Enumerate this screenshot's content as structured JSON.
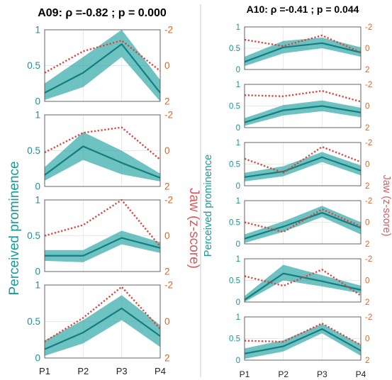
{
  "chart_data": [
    {
      "type": "line",
      "title": "A09: ρ =-0.82 ; p = 0.000",
      "ylabel_left": "Perceived prominence",
      "ylabel_right": "Jaw (z-score)",
      "x_ticks": [
        "P1",
        "P2",
        "P3",
        "P4"
      ],
      "left_ticks": [
        "0",
        "0.5",
        "1"
      ],
      "right_ticks": [
        "-2",
        "0",
        "2"
      ],
      "ylim_left": [
        0,
        1
      ],
      "ylim_right": [
        2,
        -2
      ],
      "colors": {
        "band": "#2aa5a3",
        "line": "#137e7f",
        "jaw": "#d9453f"
      },
      "panels": [
        {
          "mean": [
            0.12,
            0.4,
            0.8,
            0.12
          ],
          "lower": [
            0.02,
            0.2,
            0.62,
            0.0
          ],
          "upper": [
            0.25,
            0.62,
            1.0,
            0.3
          ],
          "jaw": [
            0.4,
            -0.8,
            -1.4,
            0.3
          ]
        },
        {
          "mean": [
            0.16,
            0.56,
            0.33,
            0.12
          ],
          "lower": [
            0.08,
            0.37,
            0.17,
            0.07
          ],
          "upper": [
            0.27,
            0.76,
            0.5,
            0.18
          ],
          "jaw": [
            0.1,
            -1.0,
            -1.3,
            0.5
          ]
        },
        {
          "mean": [
            0.22,
            0.22,
            0.47,
            0.33
          ],
          "lower": [
            0.15,
            0.13,
            0.38,
            0.26
          ],
          "upper": [
            0.3,
            0.3,
            0.57,
            0.41
          ],
          "jaw": [
            0.0,
            -0.6,
            -2.0,
            0.6
          ]
        },
        {
          "mean": [
            0.12,
            0.35,
            0.68,
            0.3
          ],
          "lower": [
            0.03,
            0.2,
            0.52,
            0.15
          ],
          "upper": [
            0.24,
            0.52,
            0.86,
            0.45
          ],
          "jaw": [
            1.1,
            -0.2,
            -1.9,
            0.4
          ]
        }
      ]
    },
    {
      "type": "line",
      "title": "A10: ρ =-0.41 ; p = 0.044",
      "ylabel_left": "Perceived prominence",
      "ylabel_right": "Jaw (z-score)",
      "x_ticks": [
        "P1",
        "P2",
        "P3",
        "P4"
      ],
      "left_ticks": [
        "0",
        "0.5",
        "1"
      ],
      "right_ticks": [
        "-2",
        "0",
        "2"
      ],
      "ylim_left": [
        0,
        1
      ],
      "ylim_right": [
        2,
        -2
      ],
      "colors": {
        "band": "#2aa5a3",
        "line": "#137e7f",
        "jaw": "#d9453f"
      },
      "panels": [
        {
          "mean": [
            0.18,
            0.52,
            0.62,
            0.4
          ],
          "lower": [
            0.08,
            0.38,
            0.5,
            0.3
          ],
          "upper": [
            0.3,
            0.67,
            0.75,
            0.52
          ],
          "jaw": [
            -0.8,
            -0.2,
            -1.2,
            0.4
          ]
        },
        {
          "mean": [
            0.12,
            0.4,
            0.5,
            0.35
          ],
          "lower": [
            0.04,
            0.28,
            0.38,
            0.24
          ],
          "upper": [
            0.22,
            0.52,
            0.63,
            0.46
          ],
          "jaw": [
            -1.0,
            -0.9,
            -1.4,
            -0.4
          ]
        },
        {
          "mean": [
            0.2,
            0.33,
            0.66,
            0.35
          ],
          "lower": [
            0.1,
            0.22,
            0.55,
            0.24
          ],
          "upper": [
            0.3,
            0.45,
            0.78,
            0.47
          ],
          "jaw": [
            -0.5,
            0.8,
            -1.6,
            -0.2
          ]
        },
        {
          "mean": [
            0.12,
            0.4,
            0.72,
            0.37
          ],
          "lower": [
            0.02,
            0.28,
            0.62,
            0.22
          ],
          "upper": [
            0.22,
            0.52,
            0.88,
            0.5
          ],
          "jaw": [
            0.0,
            0.9,
            -1.2,
            0.4
          ]
        },
        {
          "mean": [
            0.05,
            0.66,
            0.48,
            0.28
          ],
          "lower": [
            0.0,
            0.5,
            0.36,
            0.2
          ],
          "upper": [
            0.14,
            0.86,
            0.62,
            0.38
          ],
          "jaw": [
            -0.4,
            0.5,
            -1.0,
            1.4
          ]
        },
        {
          "mean": [
            0.15,
            0.32,
            0.72,
            0.22
          ],
          "lower": [
            0.03,
            0.2,
            0.62,
            0.1
          ],
          "upper": [
            0.27,
            0.46,
            0.84,
            0.36
          ],
          "jaw": [
            0.2,
            0.3,
            -1.4,
            0.6
          ]
        }
      ]
    }
  ]
}
